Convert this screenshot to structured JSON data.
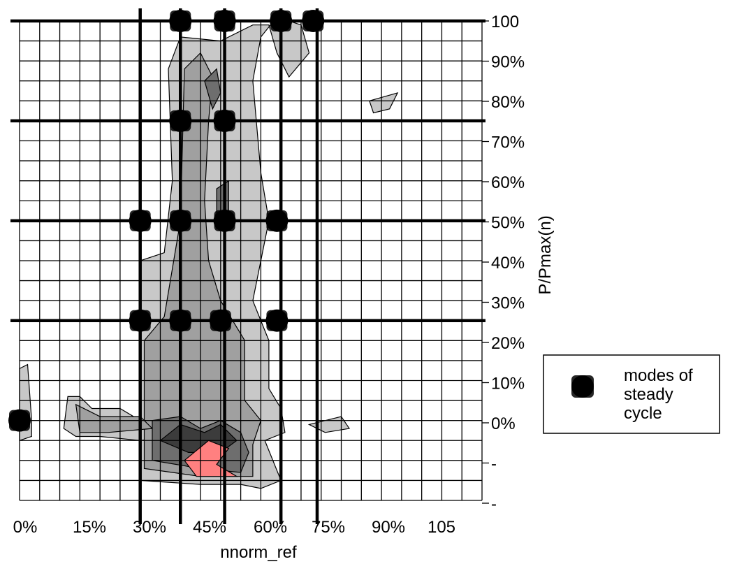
{
  "chart_data": {
    "type": "contour",
    "xlabel": "nnorm_ref",
    "ylabel": "P/Pmax(n)",
    "x_tick_labels": [
      "0%",
      "15%",
      "30%",
      "45%",
      "60%",
      "75%",
      "90%",
      "105"
    ],
    "y_tick_labels": [
      "100",
      "90%",
      "80%",
      "70%",
      "60%",
      "50%",
      "40%",
      "30%",
      "20%",
      "10%",
      "0%",
      "-",
      "-"
    ],
    "xlim": [
      0,
      115
    ],
    "ylim": [
      -20,
      100
    ],
    "grid": true,
    "legend": {
      "position": "right",
      "entries": [
        "modes of steady cycle"
      ],
      "lines": [
        "modes of",
        "steady",
        "cycle"
      ]
    },
    "modes_of_steady_cycle": [
      {
        "x": 0,
        "y": 0
      },
      {
        "x": 30,
        "y": 25
      },
      {
        "x": 40,
        "y": 25
      },
      {
        "x": 50,
        "y": 25
      },
      {
        "x": 64,
        "y": 25
      },
      {
        "x": 30,
        "y": 50
      },
      {
        "x": 40,
        "y": 50
      },
      {
        "x": 51,
        "y": 50
      },
      {
        "x": 64,
        "y": 50
      },
      {
        "x": 40,
        "y": 75
      },
      {
        "x": 51,
        "y": 75
      },
      {
        "x": 40,
        "y": 100
      },
      {
        "x": 51,
        "y": 100
      },
      {
        "x": 65,
        "y": 100
      },
      {
        "x": 73,
        "y": 100
      }
    ],
    "steady_cycle_speed_lines": [
      30,
      40,
      51,
      65,
      74
    ],
    "steady_cycle_load_lines": [
      0,
      25,
      50,
      75,
      100
    ],
    "contour_levels": [
      {
        "level": 1,
        "color": "#c8c8c8",
        "regions": [
          [
            [
              30,
              -15
            ],
            [
              30,
              40
            ],
            [
              36,
              42
            ],
            [
              38,
              60
            ],
            [
              37,
              88
            ],
            [
              40,
              96
            ],
            [
              50,
              95
            ],
            [
              58,
              99
            ],
            [
              62,
              99
            ],
            [
              64,
              92
            ],
            [
              67,
              86
            ],
            [
              72,
              92
            ],
            [
              70,
              99
            ],
            [
              64,
              101
            ],
            [
              60,
              96
            ],
            [
              58,
              85
            ],
            [
              60,
              62
            ],
            [
              62,
              50
            ],
            [
              58,
              30
            ],
            [
              62,
              20
            ],
            [
              62,
              8
            ],
            [
              65,
              3
            ],
            [
              66,
              -3
            ],
            [
              61,
              -5
            ],
            [
              65,
              -15
            ],
            [
              60,
              -17
            ],
            [
              55,
              -16
            ],
            [
              45,
              -16
            ]
          ],
          [
            [
              12,
              6
            ],
            [
              15,
              6
            ],
            [
              18,
              3
            ],
            [
              25,
              3
            ],
            [
              30,
              0
            ],
            [
              35,
              -1
            ],
            [
              38,
              -4
            ],
            [
              30,
              -5
            ],
            [
              20,
              -4
            ],
            [
              14,
              -4
            ],
            [
              11,
              -2
            ]
          ],
          [
            [
              0,
              13
            ],
            [
              2,
              14
            ],
            [
              3,
              0
            ],
            [
              3,
              -4
            ],
            [
              0,
              -5
            ]
          ],
          [
            [
              87,
              80
            ],
            [
              94,
              82
            ],
            [
              92,
              78
            ],
            [
              88,
              77
            ]
          ],
          [
            [
              72,
              -1
            ],
            [
              80,
              1
            ],
            [
              82,
              -2
            ],
            [
              76,
              -3
            ]
          ]
        ]
      },
      {
        "level": 2,
        "color": "#a0a0a0",
        "regions": [
          [
            [
              31,
              -12
            ],
            [
              31,
              20
            ],
            [
              36,
              26
            ],
            [
              40,
              50
            ],
            [
              41,
              88
            ],
            [
              45,
              92
            ],
            [
              48,
              86
            ],
            [
              47,
              75
            ],
            [
              46,
              55
            ],
            [
              47,
              40
            ],
            [
              50,
              30
            ],
            [
              56,
              20
            ],
            [
              56,
              5
            ],
            [
              60,
              0
            ],
            [
              58,
              -6
            ],
            [
              58,
              -14
            ],
            [
              45,
              -14
            ]
          ],
          [
            [
              14,
              4
            ],
            [
              20,
              1
            ],
            [
              30,
              1
            ],
            [
              33,
              -2
            ],
            [
              22,
              -3
            ],
            [
              15,
              -3
            ]
          ]
        ]
      },
      {
        "level": 3,
        "color": "#6e6e6e",
        "regions": [
          [
            [
              33,
              -10
            ],
            [
              33,
              0
            ],
            [
              40,
              1
            ],
            [
              45,
              -2
            ],
            [
              50,
              0
            ],
            [
              55,
              -3
            ],
            [
              57,
              -8
            ],
            [
              55,
              -13
            ],
            [
              45,
              -12
            ]
          ],
          [
            [
              46,
              85
            ],
            [
              49,
              88
            ],
            [
              50,
              82
            ],
            [
              48,
              78
            ]
          ],
          [
            [
              49,
              58
            ],
            [
              52,
              60
            ],
            [
              52,
              50
            ],
            [
              49,
              48
            ]
          ]
        ]
      },
      {
        "level": 4,
        "color": "#3c3c3c",
        "regions": [
          [
            [
              35,
              -5
            ],
            [
              40,
              -1
            ],
            [
              46,
              -3
            ],
            [
              50,
              -1
            ],
            [
              54,
              -5
            ],
            [
              50,
              -8
            ],
            [
              42,
              -8
            ]
          ]
        ]
      },
      {
        "level": 5,
        "color": "#ff8080",
        "regions": [
          [
            [
              41,
              -10
            ],
            [
              47,
              -5
            ],
            [
              52,
              -7
            ],
            [
              49,
              -11
            ],
            [
              54,
              -14
            ],
            [
              44,
              -14
            ]
          ]
        ]
      }
    ]
  }
}
